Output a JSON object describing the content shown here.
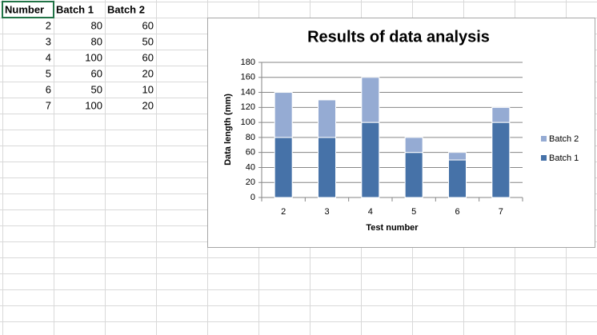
{
  "sheet": {
    "headers": [
      "Number",
      "Batch 1",
      "Batch 2"
    ],
    "rows": [
      [
        2,
        80,
        60
      ],
      [
        3,
        80,
        50
      ],
      [
        4,
        100,
        60
      ],
      [
        5,
        60,
        20
      ],
      [
        6,
        50,
        10
      ],
      [
        7,
        100,
        20
      ]
    ]
  },
  "chart_data": {
    "type": "bar",
    "stacked": true,
    "title": "Results of data analysis",
    "x_label": "Test number",
    "y_label": "Data length (mm)",
    "categories": [
      "2",
      "3",
      "4",
      "5",
      "6",
      "7"
    ],
    "series": [
      {
        "name": "Batch 1",
        "color": "#4672a8",
        "values": [
          80,
          80,
          100,
          60,
          50,
          100
        ]
      },
      {
        "name": "Batch 2",
        "color": "#95abd3",
        "values": [
          60,
          50,
          60,
          20,
          10,
          20
        ]
      }
    ],
    "ylim": [
      0,
      180
    ],
    "yticks": [
      0,
      20,
      40,
      60,
      80,
      100,
      120,
      140,
      160,
      180
    ],
    "grid": true,
    "legend": "right"
  }
}
